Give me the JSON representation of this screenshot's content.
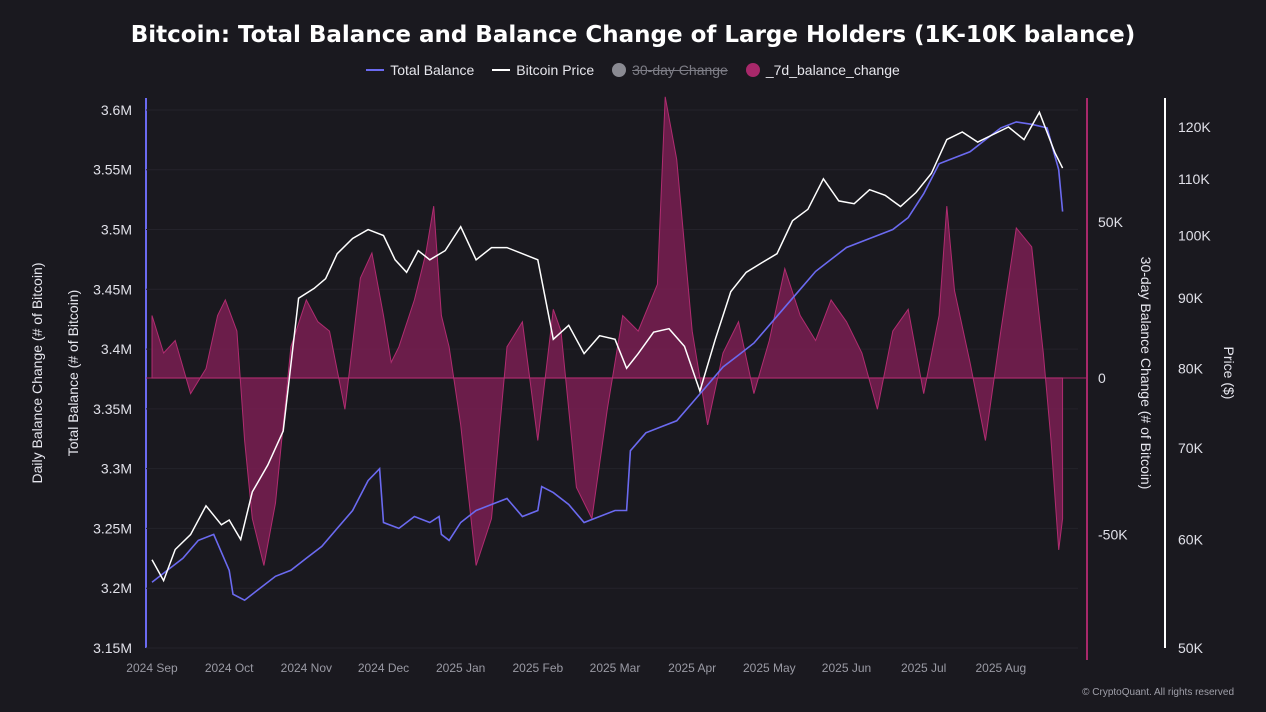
{
  "chart_data": {
    "type": "line",
    "title": "Bitcoin: Total Balance and Balance Change of Large Holders (1K-10K balance)",
    "legend": [
      {
        "label": "Total Balance",
        "color": "#6b6af0",
        "kind": "line",
        "enabled": true
      },
      {
        "label": "Bitcoin Price",
        "color": "#ffffff",
        "kind": "line",
        "enabled": true
      },
      {
        "label": "30-day Change",
        "color": "#8a8a92",
        "kind": "dot",
        "enabled": false
      },
      {
        "label": "_7d_balance_change",
        "color": "#a8286a",
        "kind": "dot",
        "enabled": true
      }
    ],
    "x_ticks": [
      "2024 Sep",
      "2024 Oct",
      "2024 Nov",
      "2024 Dec",
      "2025 Jan",
      "2025 Feb",
      "2025 Mar",
      "2025 Apr",
      "2025 May",
      "2025 Jun",
      "2025 Jul",
      "2025 Aug"
    ],
    "y_left_ticks": [
      "3.6M",
      "3.55M",
      "3.5M",
      "3.45M",
      "3.4M",
      "3.35M",
      "3.3M",
      "3.25M",
      "3.2M",
      "3.15M"
    ],
    "y_left_label_outer": "Daily Balance Change (# of Bitcoin)",
    "y_left_label_inner": "Total Balance (# of Bitcoin)",
    "y_mid_ticks": [
      "50K",
      "0",
      "-50K"
    ],
    "y_mid_label": "30-day Balance Change (# of Bitcoin)",
    "y_right_ticks": [
      "120K",
      "110K",
      "100K",
      "90K",
      "80K",
      "70K",
      "60K",
      "50K"
    ],
    "y_right_label": "Price ($)",
    "total_balance_range": [
      3150000,
      3610000
    ],
    "change_range": [
      -80000,
      80000
    ],
    "price_scale": "log",
    "price_range": [
      50000,
      126000
    ],
    "x_range": [
      0,
      12
    ],
    "series": [
      {
        "name": "Total Balance",
        "x": [
          0,
          0.2,
          0.4,
          0.6,
          0.8,
          1.0,
          1.05,
          1.2,
          1.4,
          1.6,
          1.8,
          2.0,
          2.2,
          2.4,
          2.6,
          2.8,
          2.95,
          3.0,
          3.2,
          3.4,
          3.6,
          3.72,
          3.75,
          3.85,
          4.0,
          4.2,
          4.4,
          4.6,
          4.8,
          5.0,
          5.05,
          5.2,
          5.4,
          5.6,
          5.8,
          6.0,
          6.15,
          6.2,
          6.4,
          6.6,
          6.8,
          7.0,
          7.2,
          7.4,
          7.6,
          7.8,
          8.0,
          8.2,
          8.4,
          8.6,
          8.8,
          9.0,
          9.2,
          9.4,
          9.6,
          9.8,
          10.0,
          10.2,
          10.4,
          10.6,
          10.8,
          11.0,
          11.2,
          11.4,
          11.6,
          11.75,
          11.8
        ],
        "values": [
          3205000,
          3215000,
          3225000,
          3240000,
          3245000,
          3215000,
          3195000,
          3190000,
          3200000,
          3210000,
          3215000,
          3225000,
          3235000,
          3250000,
          3265000,
          3290000,
          3300000,
          3255000,
          3250000,
          3260000,
          3255000,
          3260000,
          3245000,
          3240000,
          3255000,
          3265000,
          3270000,
          3275000,
          3260000,
          3265000,
          3285000,
          3280000,
          3270000,
          3255000,
          3260000,
          3265000,
          3265000,
          3315000,
          3330000,
          3335000,
          3340000,
          3355000,
          3370000,
          3385000,
          3395000,
          3405000,
          3420000,
          3435000,
          3450000,
          3465000,
          3475000,
          3485000,
          3490000,
          3495000,
          3500000,
          3510000,
          3530000,
          3555000,
          3560000,
          3565000,
          3575000,
          3585000,
          3590000,
          3588000,
          3585000,
          3550000,
          3515000
        ]
      },
      {
        "name": "Bitcoin Price",
        "x": [
          0,
          0.15,
          0.3,
          0.5,
          0.7,
          0.9,
          1.0,
          1.15,
          1.3,
          1.5,
          1.7,
          1.9,
          2.1,
          2.25,
          2.4,
          2.6,
          2.8,
          3.0,
          3.15,
          3.3,
          3.45,
          3.6,
          3.8,
          4.0,
          4.2,
          4.4,
          4.6,
          4.8,
          5.0,
          5.2,
          5.4,
          5.6,
          5.8,
          6.0,
          6.15,
          6.3,
          6.5,
          6.7,
          6.9,
          7.1,
          7.3,
          7.5,
          7.7,
          7.9,
          8.1,
          8.3,
          8.5,
          8.7,
          8.9,
          9.1,
          9.3,
          9.5,
          9.7,
          9.9,
          10.1,
          10.3,
          10.5,
          10.7,
          10.9,
          11.1,
          11.3,
          11.5,
          11.7,
          11.8
        ],
        "values": [
          58000,
          56000,
          59000,
          60500,
          63500,
          61500,
          62000,
          60000,
          65000,
          68000,
          72000,
          90000,
          91500,
          93000,
          97000,
          99500,
          101000,
          100000,
          96000,
          94000,
          97500,
          96000,
          97500,
          101500,
          96000,
          98000,
          98000,
          97000,
          96000,
          84000,
          86000,
          82000,
          84500,
          84000,
          80000,
          82000,
          85000,
          85500,
          83000,
          77000,
          84000,
          91000,
          94000,
          95500,
          97000,
          102500,
          104500,
          110000,
          106000,
          105500,
          108000,
          107000,
          105000,
          107500,
          111000,
          117500,
          119000,
          117000,
          118500,
          120000,
          117500,
          123000,
          115000,
          112000
        ]
      },
      {
        "name": "_7d_balance_change",
        "x": [
          0,
          0.15,
          0.3,
          0.5,
          0.7,
          0.85,
          0.95,
          1.1,
          1.2,
          1.3,
          1.45,
          1.6,
          1.8,
          2.0,
          2.15,
          2.3,
          2.5,
          2.7,
          2.85,
          3.0,
          3.1,
          3.2,
          3.4,
          3.55,
          3.65,
          3.75,
          3.85,
          4.0,
          4.2,
          4.4,
          4.6,
          4.8,
          5.0,
          5.2,
          5.3,
          5.5,
          5.7,
          5.9,
          6.1,
          6.3,
          6.55,
          6.65,
          6.8,
          7.0,
          7.2,
          7.4,
          7.6,
          7.8,
          8.0,
          8.2,
          8.4,
          8.6,
          8.8,
          9.0,
          9.2,
          9.4,
          9.6,
          9.8,
          10.0,
          10.2,
          10.3,
          10.4,
          10.6,
          10.8,
          11.0,
          11.2,
          11.4,
          11.55,
          11.65,
          11.75,
          11.8
        ],
        "values": [
          20000,
          8000,
          12000,
          -5000,
          3000,
          20000,
          25000,
          15000,
          -20000,
          -45000,
          -60000,
          -40000,
          10000,
          25000,
          18000,
          15000,
          -10000,
          32000,
          40000,
          20000,
          5000,
          10000,
          25000,
          40000,
          55000,
          20000,
          10000,
          -15000,
          -60000,
          -45000,
          10000,
          18000,
          -20000,
          22000,
          15000,
          -35000,
          -45000,
          -10000,
          20000,
          15000,
          30000,
          90000,
          70000,
          15000,
          -15000,
          8000,
          18000,
          -5000,
          12000,
          35000,
          20000,
          12000,
          25000,
          18000,
          8000,
          -10000,
          15000,
          22000,
          -5000,
          20000,
          55000,
          28000,
          5000,
          -20000,
          15000,
          48000,
          42000,
          8000,
          -20000,
          -55000,
          -45000
        ]
      }
    ],
    "copyright": "© CryptoQuant. All rights reserved"
  }
}
